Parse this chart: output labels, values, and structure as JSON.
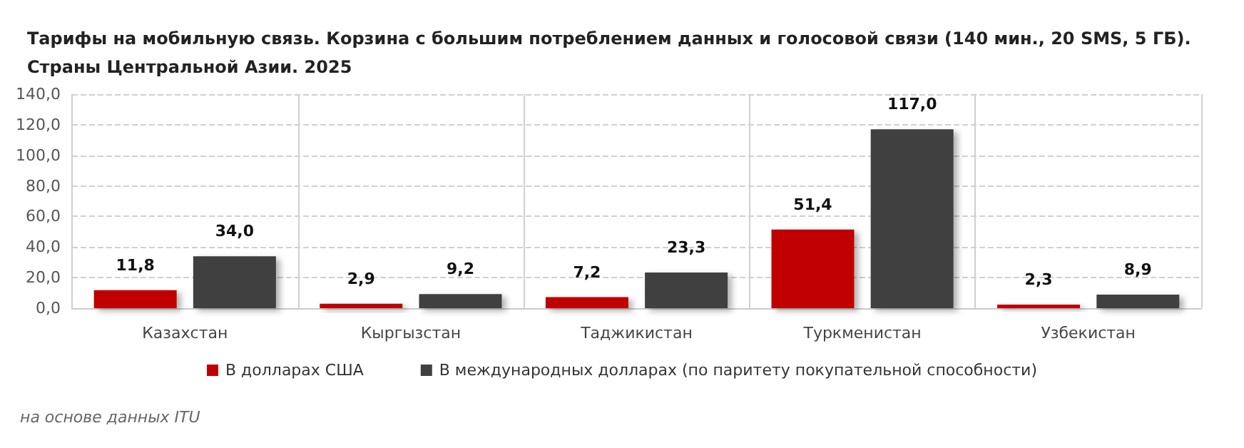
{
  "chart_data": {
    "type": "bar",
    "title": "Тарифы на мобильную связь. Корзина с большим потреблением данных и голосовой связи (140 мин., 20 SMS, 5 ГБ).\nСтраны Центральной Азии. 2025",
    "categories": [
      "Казахстан",
      "Кыргызстан",
      "Таджикистан",
      "Туркменистан",
      "Узбекистан"
    ],
    "series": [
      {
        "name": "В долларах США",
        "color": "#c00000",
        "values": [
          11.8,
          2.9,
          7.2,
          51.4,
          2.3
        ],
        "value_labels": [
          "11,8",
          "2,9",
          "7,2",
          "51,4",
          "2,3"
        ]
      },
      {
        "name": "В международных долларах (по паритету покупательной способности)",
        "color": "#404040",
        "values": [
          34.0,
          9.2,
          23.3,
          117.0,
          8.9
        ],
        "value_labels": [
          "34,0",
          "9,2",
          "23,3",
          "117,0",
          "8,9"
        ]
      }
    ],
    "ylim": [
      0,
      140
    ],
    "yticks": [
      {
        "value": 0,
        "label": "0,0"
      },
      {
        "value": 20,
        "label": "20,0"
      },
      {
        "value": 40,
        "label": "40,0"
      },
      {
        "value": 60,
        "label": "60,0"
      },
      {
        "value": 80,
        "label": "80,0"
      },
      {
        "value": 100,
        "label": "100,0"
      },
      {
        "value": 120,
        "label": "120,0"
      },
      {
        "value": 140,
        "label": "140,0"
      }
    ],
    "grid": true,
    "legend": "bottom",
    "annotations": [
      "на основе данных ITU"
    ]
  }
}
